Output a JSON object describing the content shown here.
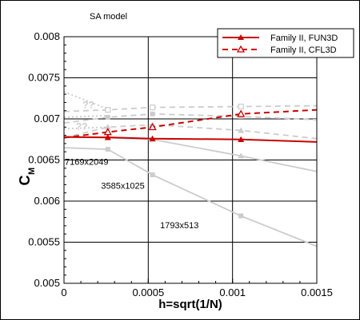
{
  "chart_data": {
    "type": "line",
    "title": "SA model",
    "xlabel": "h=sqrt(1/N)",
    "ylabel_main": "C",
    "ylabel_sub": "M",
    "xlim": [
      0,
      0.0015
    ],
    "ylim": [
      0.005,
      0.008
    ],
    "grid": true,
    "legend_position": "top-right",
    "x_ticks": [
      {
        "value": 0,
        "label": "0"
      },
      {
        "value": 0.0005,
        "label": "0.0005"
      },
      {
        "value": 0.001,
        "label": "0.001"
      },
      {
        "value": 0.0015,
        "label": "0.0015"
      }
    ],
    "y_ticks": [
      {
        "value": 0.005,
        "label": "0.005"
      },
      {
        "value": 0.0055,
        "label": "0.0055"
      },
      {
        "value": 0.006,
        "label": "0.006"
      },
      {
        "value": 0.0065,
        "label": "0.0065"
      },
      {
        "value": 0.007,
        "label": "0.007"
      },
      {
        "value": 0.0075,
        "label": "0.0075"
      },
      {
        "value": 0.008,
        "label": "0.008"
      }
    ],
    "series": [
      {
        "name": "Family II, FUN3D",
        "color": "#cc0000",
        "dash": "solid",
        "marker": "filled-triangle",
        "line_x": [
          0,
          0.00026,
          0.000525,
          0.00105,
          0.0015
        ],
        "line_y": [
          0.00678,
          0.006775,
          0.00676,
          0.00675,
          0.00672
        ],
        "marker_x": [
          0.00026,
          0.000525,
          0.00105
        ],
        "marker_y": [
          0.006775,
          0.00676,
          0.00675
        ]
      },
      {
        "name": "Family II, CFL3D",
        "color": "#cc0000",
        "dash": "dashed",
        "marker": "open-triangle",
        "line_x": [
          0,
          0.00026,
          0.000525,
          0.00105,
          0.0015
        ],
        "line_y": [
          0.00677,
          0.00684,
          0.0069,
          0.00706,
          0.00711
        ],
        "marker_x": [
          0.00026,
          0.000525,
          0.00105
        ],
        "marker_y": [
          0.00684,
          0.0069,
          0.00706
        ]
      }
    ],
    "background_series": [
      {
        "color": "#cccccc",
        "dash": "solid",
        "marker": "square",
        "line_x": [
          0,
          0.00026,
          0.000525,
          0.00105,
          0.0015
        ],
        "line_y": [
          0.00665,
          0.00663,
          0.00632,
          0.00582,
          0.00545
        ],
        "marker_x": [
          0.00026,
          0.000525,
          0.00105
        ],
        "marker_y": [
          0.00663,
          0.00632,
          0.00582
        ]
      },
      {
        "color": "#cccccc",
        "dash": "solid",
        "marker": "triangle",
        "line_x": [
          0,
          0.00026,
          0.000525,
          0.00105,
          0.0015
        ],
        "line_y": [
          0.00678,
          0.00677,
          0.00675,
          0.00655,
          0.00636
        ],
        "marker_x": [
          0.00026,
          0.000525,
          0.00105
        ],
        "marker_y": [
          0.00677,
          0.00675,
          0.00655
        ]
      },
      {
        "color": "#cccccc",
        "dash": "dashed",
        "marker": "square",
        "line_x": [
          0,
          0.00026,
          0.000525,
          0.00105,
          0.0015
        ],
        "line_y": [
          0.00695,
          0.00702,
          0.00706,
          0.00703,
          0.00699
        ],
        "marker_x": [
          0.00026,
          0.000525,
          0.00105
        ],
        "marker_y": [
          0.00702,
          0.00706,
          0.00703
        ]
      },
      {
        "color": "#cccccc",
        "dash": "dashed",
        "marker": "triangle",
        "line_x": [
          0,
          0.00026,
          0.000525,
          0.00105,
          0.0015
        ],
        "line_y": [
          0.00677,
          0.0069,
          0.00693,
          0.00686,
          0.00676
        ],
        "marker_x": [
          0.00026,
          0.000525,
          0.00105
        ],
        "marker_y": [
          0.0069,
          0.00693,
          0.00686
        ]
      },
      {
        "color": "#cccccc",
        "dash": "dashed",
        "marker": "open-square",
        "line_x": [
          0,
          0.00026,
          0.000525,
          0.00105,
          0.0015
        ],
        "line_y": [
          0.00709,
          0.00711,
          0.00714,
          0.00715,
          0.00716
        ],
        "marker_x": [
          0.00026,
          0.000525,
          0.00105
        ],
        "marker_y": [
          0.00711,
          0.00714,
          0.00715
        ]
      },
      {
        "color": "#cccccc",
        "dash": "dotted",
        "marker": "none",
        "line_x": [
          0,
          0.00026
        ],
        "line_y": [
          0.00733,
          0.00712
        ],
        "marker_x": [],
        "marker_y": []
      },
      {
        "color": "#cccccc",
        "dash": "dotted",
        "marker": "none",
        "line_x": [
          0,
          0.00026
        ],
        "line_y": [
          0.00702,
          0.00704
        ],
        "marker_x": [],
        "marker_y": []
      },
      {
        "color": "#cccccc",
        "dash": "dotted",
        "marker": "none",
        "line_x": [
          0,
          0.00026
        ],
        "line_y": [
          0.00688,
          0.0069
        ],
        "marker_x": [],
        "marker_y": []
      }
    ],
    "faint_annotations": [
      {
        "text": "??",
        "x": 0.00011,
        "y": 0.00713
      },
      {
        "text": "??",
        "x": 7e-05,
        "y": 0.00687
      }
    ],
    "annotations": [
      {
        "text": "7169x2049",
        "x": 5e-06,
        "y": 0.00644
      },
      {
        "text": "3585x1025",
        "x": 0.00022,
        "y": 0.00615
      },
      {
        "text": "1793x513",
        "x": 0.00057,
        "y": 0.00567
      }
    ]
  }
}
